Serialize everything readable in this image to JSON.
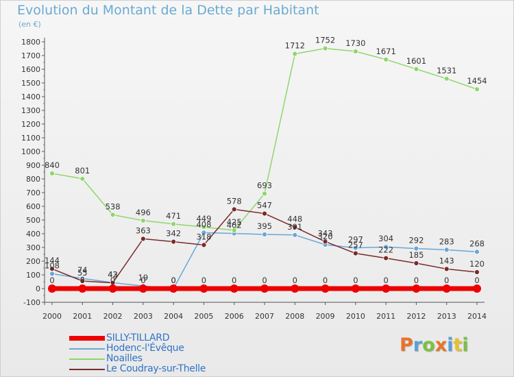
{
  "header": {
    "title": "Evolution du Montant de la Dette par Habitant",
    "subtitle": "(en €)"
  },
  "logo": {
    "text": "Proxiti",
    "letters": [
      {
        "ch": "P",
        "color": "#e8732b"
      },
      {
        "ch": "r",
        "color": "#5aa0d8"
      },
      {
        "ch": "o",
        "color": "#7bc043"
      },
      {
        "ch": "x",
        "color": "#e8732b"
      },
      {
        "ch": "i",
        "color": "#5aa0d8"
      },
      {
        "ch": "t",
        "color": "#e8c12b"
      },
      {
        "ch": "i",
        "color": "#7bc043"
      }
    ]
  },
  "chart_data": {
    "type": "line",
    "title": "Evolution du Montant de la Dette par Habitant",
    "ylabel": "(en €)",
    "xlabel": "",
    "x": [
      "2000",
      "2001",
      "2002",
      "2003",
      "2004",
      "2005",
      "2006",
      "2007",
      "2008",
      "2009",
      "2010",
      "2011",
      "2012",
      "2013",
      "2014"
    ],
    "ylim": [
      -100,
      1800
    ],
    "ytick_step": 100,
    "grid": false,
    "legend_position": "bottom-left",
    "series": [
      {
        "name": "SILLY-TILLARD",
        "color": "#ee0000",
        "values": [
          0,
          0,
          0,
          0,
          0,
          0,
          0,
          0,
          0,
          0,
          0,
          0,
          0,
          0,
          0
        ],
        "labels": [
          "0",
          "0",
          "0",
          "0",
          "0",
          "0",
          "0",
          "0",
          "0",
          "0",
          "0",
          "0",
          "0",
          "0",
          "0"
        ]
      },
      {
        "name": "Hodenc-l'Évêque",
        "color": "#6aa6d6",
        "values": [
          108,
          74,
          43,
          19,
          0,
          408,
          402,
          395,
          391,
          320,
          297,
          304,
          292,
          283,
          268
        ],
        "labels": [
          "108",
          "74",
          "43",
          "19",
          "0",
          "408",
          "402",
          "395",
          "391",
          "320",
          "297",
          "304",
          "292",
          "283",
          "268"
        ]
      },
      {
        "name": "Noailles",
        "color": "#8fd66a",
        "values": [
          840,
          801,
          538,
          496,
          471,
          449,
          425,
          693,
          1712,
          1752,
          1730,
          1671,
          1601,
          1531,
          1454
        ],
        "labels": [
          "840",
          "801",
          "538",
          "496",
          "471",
          "449",
          "425",
          "693",
          "1712",
          "1752",
          "1730",
          "1671",
          "1601",
          "1531",
          "1454"
        ]
      },
      {
        "name": "Le Coudray-sur-Thelle",
        "color": "#7a2a2a",
        "values": [
          144,
          55,
          42,
          363,
          342,
          318,
          578,
          547,
          448,
          343,
          257,
          222,
          185,
          143,
          120
        ],
        "labels": [
          "144",
          "55",
          "42",
          "363",
          "342",
          "318",
          "578",
          "547",
          "448",
          "343",
          "257",
          "222",
          "185",
          "143",
          "120"
        ]
      }
    ]
  }
}
